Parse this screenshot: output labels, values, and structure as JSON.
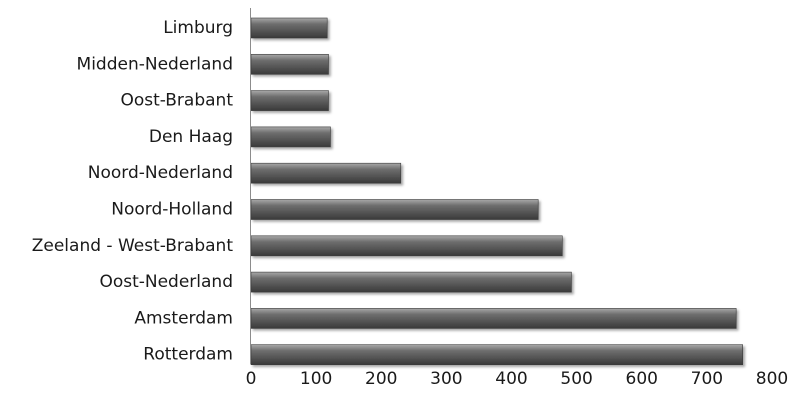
{
  "chart_data": {
    "type": "bar",
    "orientation": "horizontal",
    "categories": [
      "Limburg",
      "Midden-Nederland",
      "Oost-Brabant",
      "Den Haag",
      "Noord-Nederland",
      "Noord-Holland",
      "Zeeland - West-Brabant",
      "Oost-Nederland",
      "Amsterdam",
      "Rotterdam"
    ],
    "values": [
      117,
      119,
      119,
      122,
      230,
      441,
      478,
      492,
      745,
      755
    ],
    "xlim": [
      0,
      800
    ],
    "xticks": [
      "0",
      "100",
      "200",
      "300",
      "400",
      "500",
      "600",
      "700",
      "800"
    ],
    "grid": false,
    "legend": "none",
    "colors": {
      "bar_dark": "#3a3a3a",
      "bar_mid": "#6e6e6e",
      "bar_light": "#a9a9a9",
      "axis": "#8c8c8c"
    }
  }
}
